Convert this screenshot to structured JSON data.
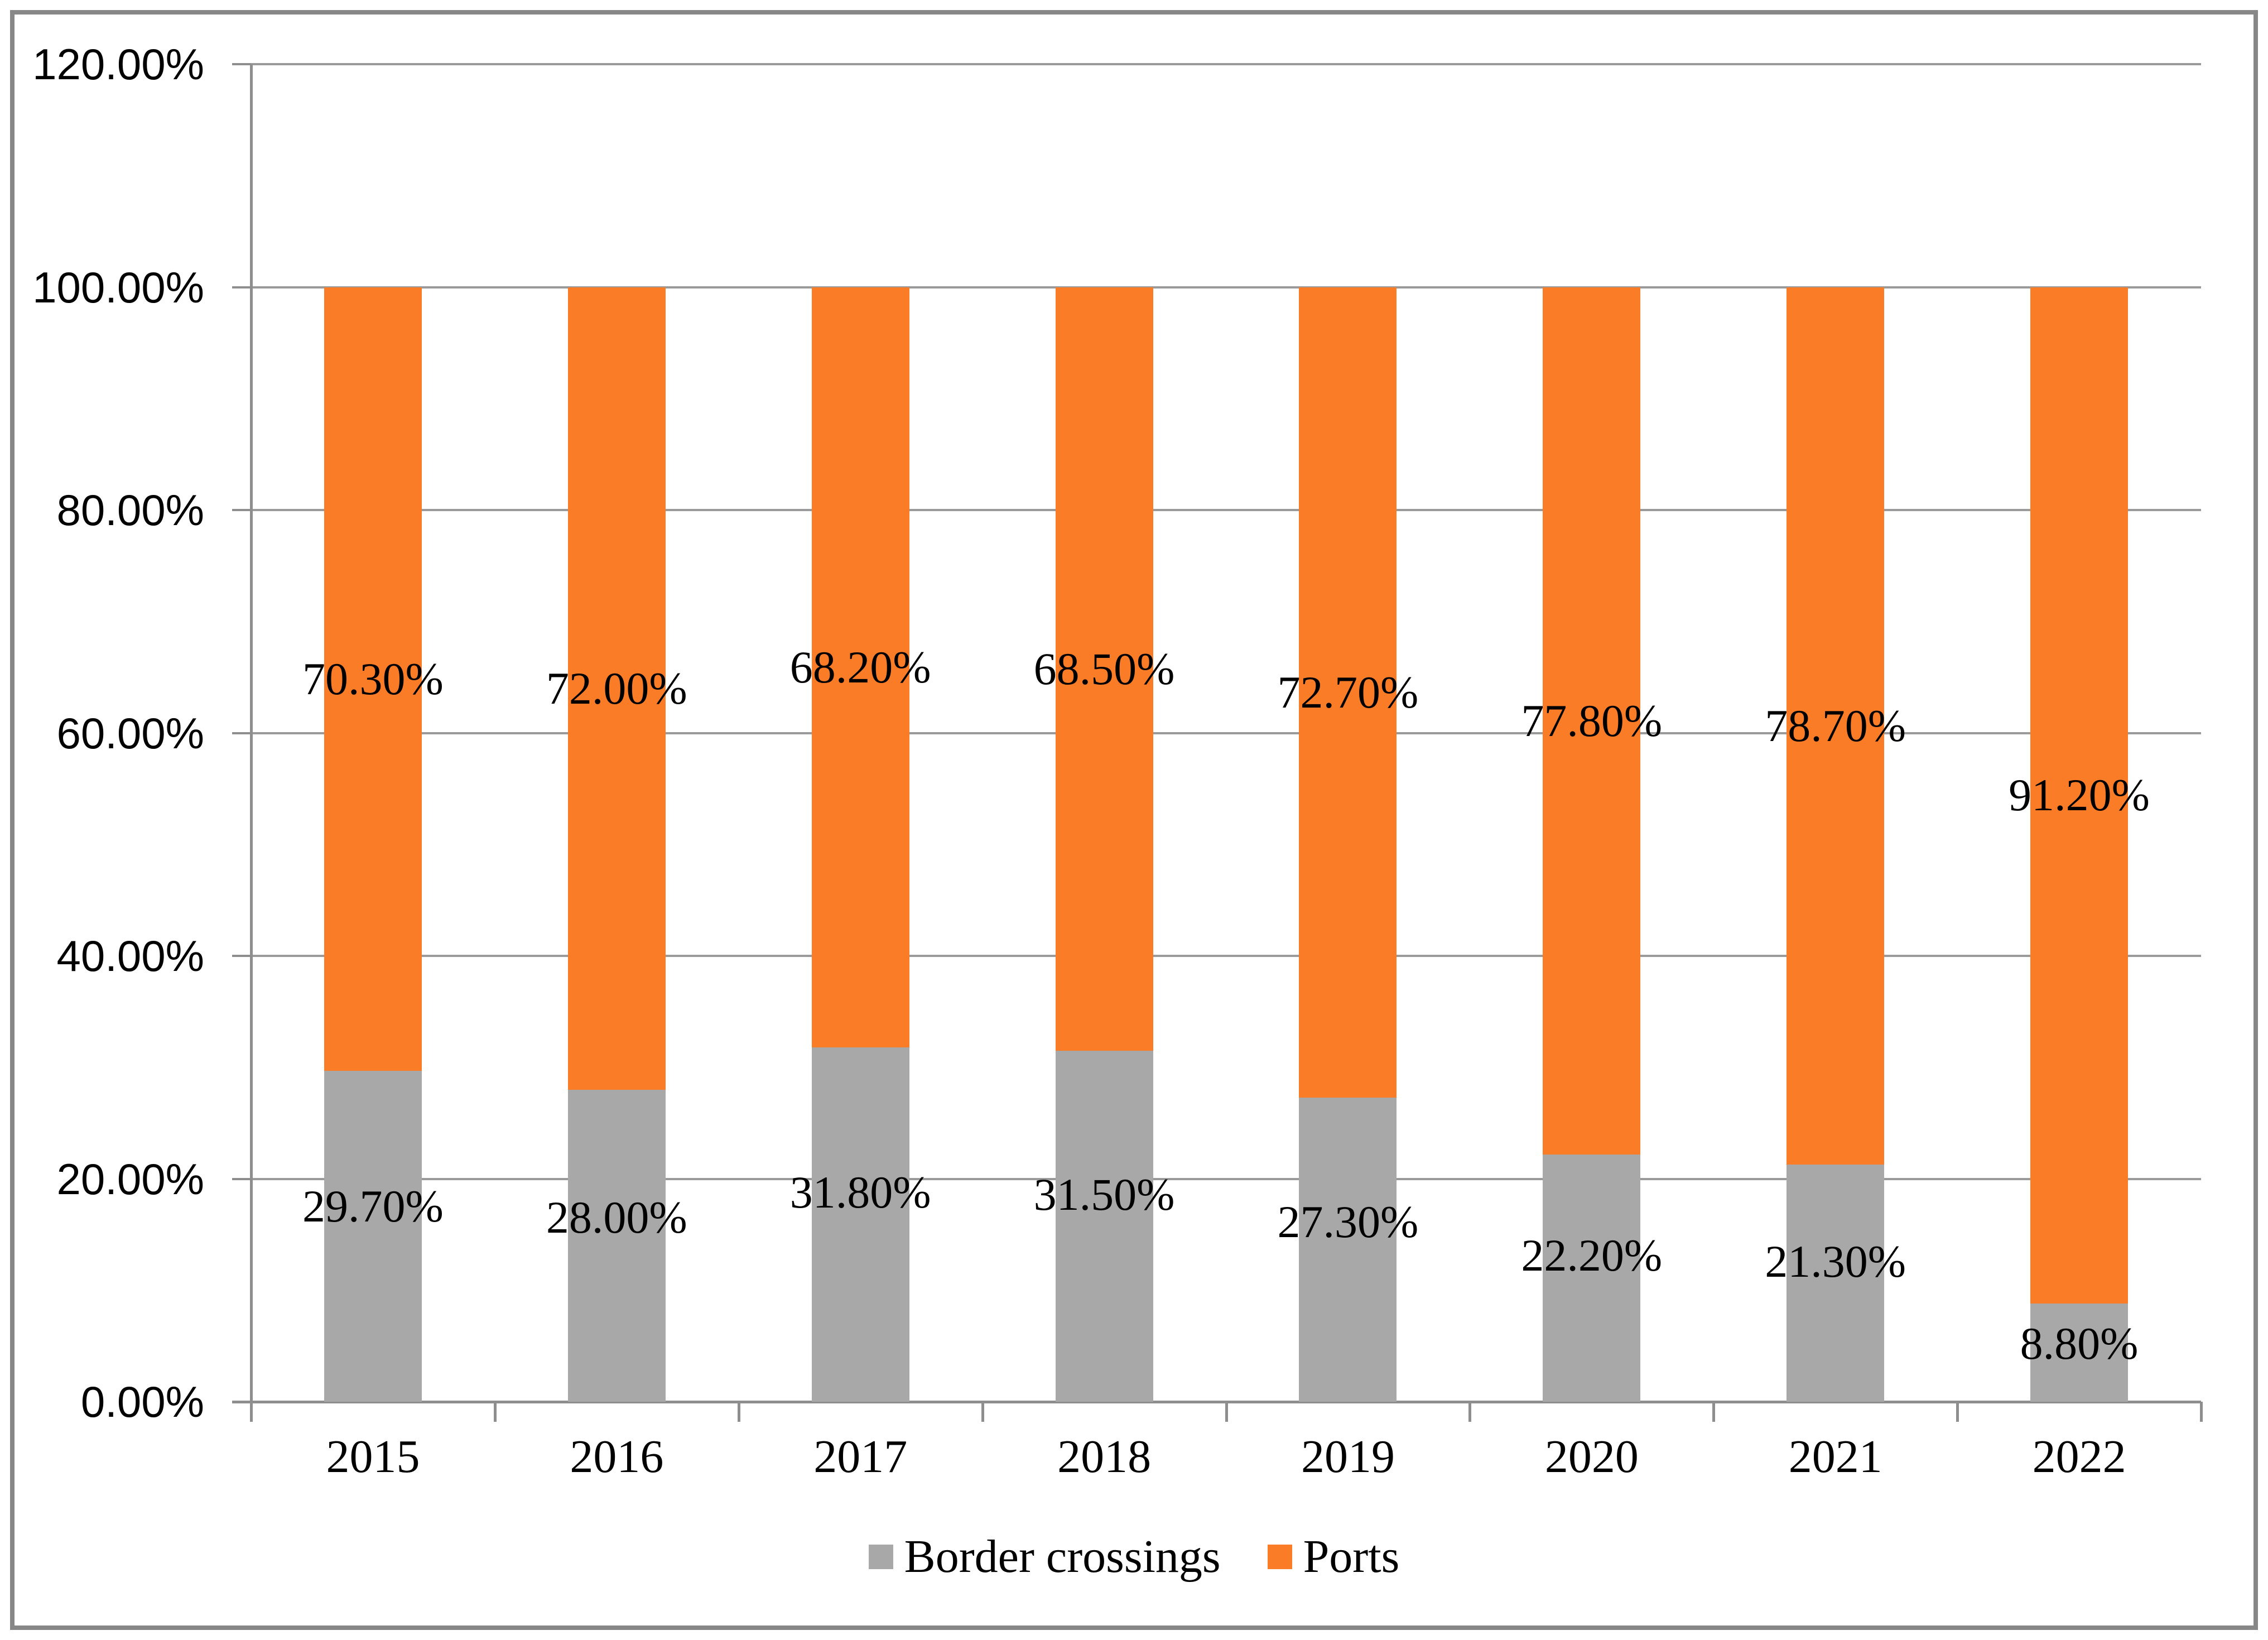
{
  "chart_data": {
    "type": "bar",
    "subtype": "stacked-100-percent-column",
    "title": "",
    "xlabel": "",
    "ylabel": "",
    "categories": [
      "2015",
      "2016",
      "2017",
      "2018",
      "2019",
      "2020",
      "2021",
      "2022"
    ],
    "series": [
      {
        "name": "Border crossings",
        "color": "#a8a8a8",
        "values": [
          29.7,
          28.0,
          31.8,
          31.5,
          27.3,
          22.2,
          21.3,
          8.8
        ],
        "labels": [
          "29.70%",
          "28.00%",
          "31.80%",
          "31.50%",
          "27.30%",
          "22.20%",
          "21.30%",
          "8.80%"
        ]
      },
      {
        "name": "Ports",
        "color": "#fb7c26",
        "values": [
          70.3,
          72.0,
          68.2,
          68.5,
          72.7,
          77.8,
          78.7,
          91.2
        ],
        "labels": [
          "70.30%",
          "72.00%",
          "68.20%",
          "68.50%",
          "72.70%",
          "77.80%",
          "78.70%",
          "91.20%"
        ]
      }
    ],
    "ylim": [
      0,
      120
    ],
    "y_tick_step": 20,
    "y_ticks": [
      "0.00%",
      "20.00%",
      "40.00%",
      "60.00%",
      "80.00%",
      "100.00%",
      "120.00%"
    ],
    "grid": true,
    "legend_position": "bottom",
    "colors": {
      "gridline": "#9a9a9a",
      "axis": "#8e8e8e",
      "frame": "#878787",
      "background": "#ffffff",
      "text": "#000000"
    }
  }
}
